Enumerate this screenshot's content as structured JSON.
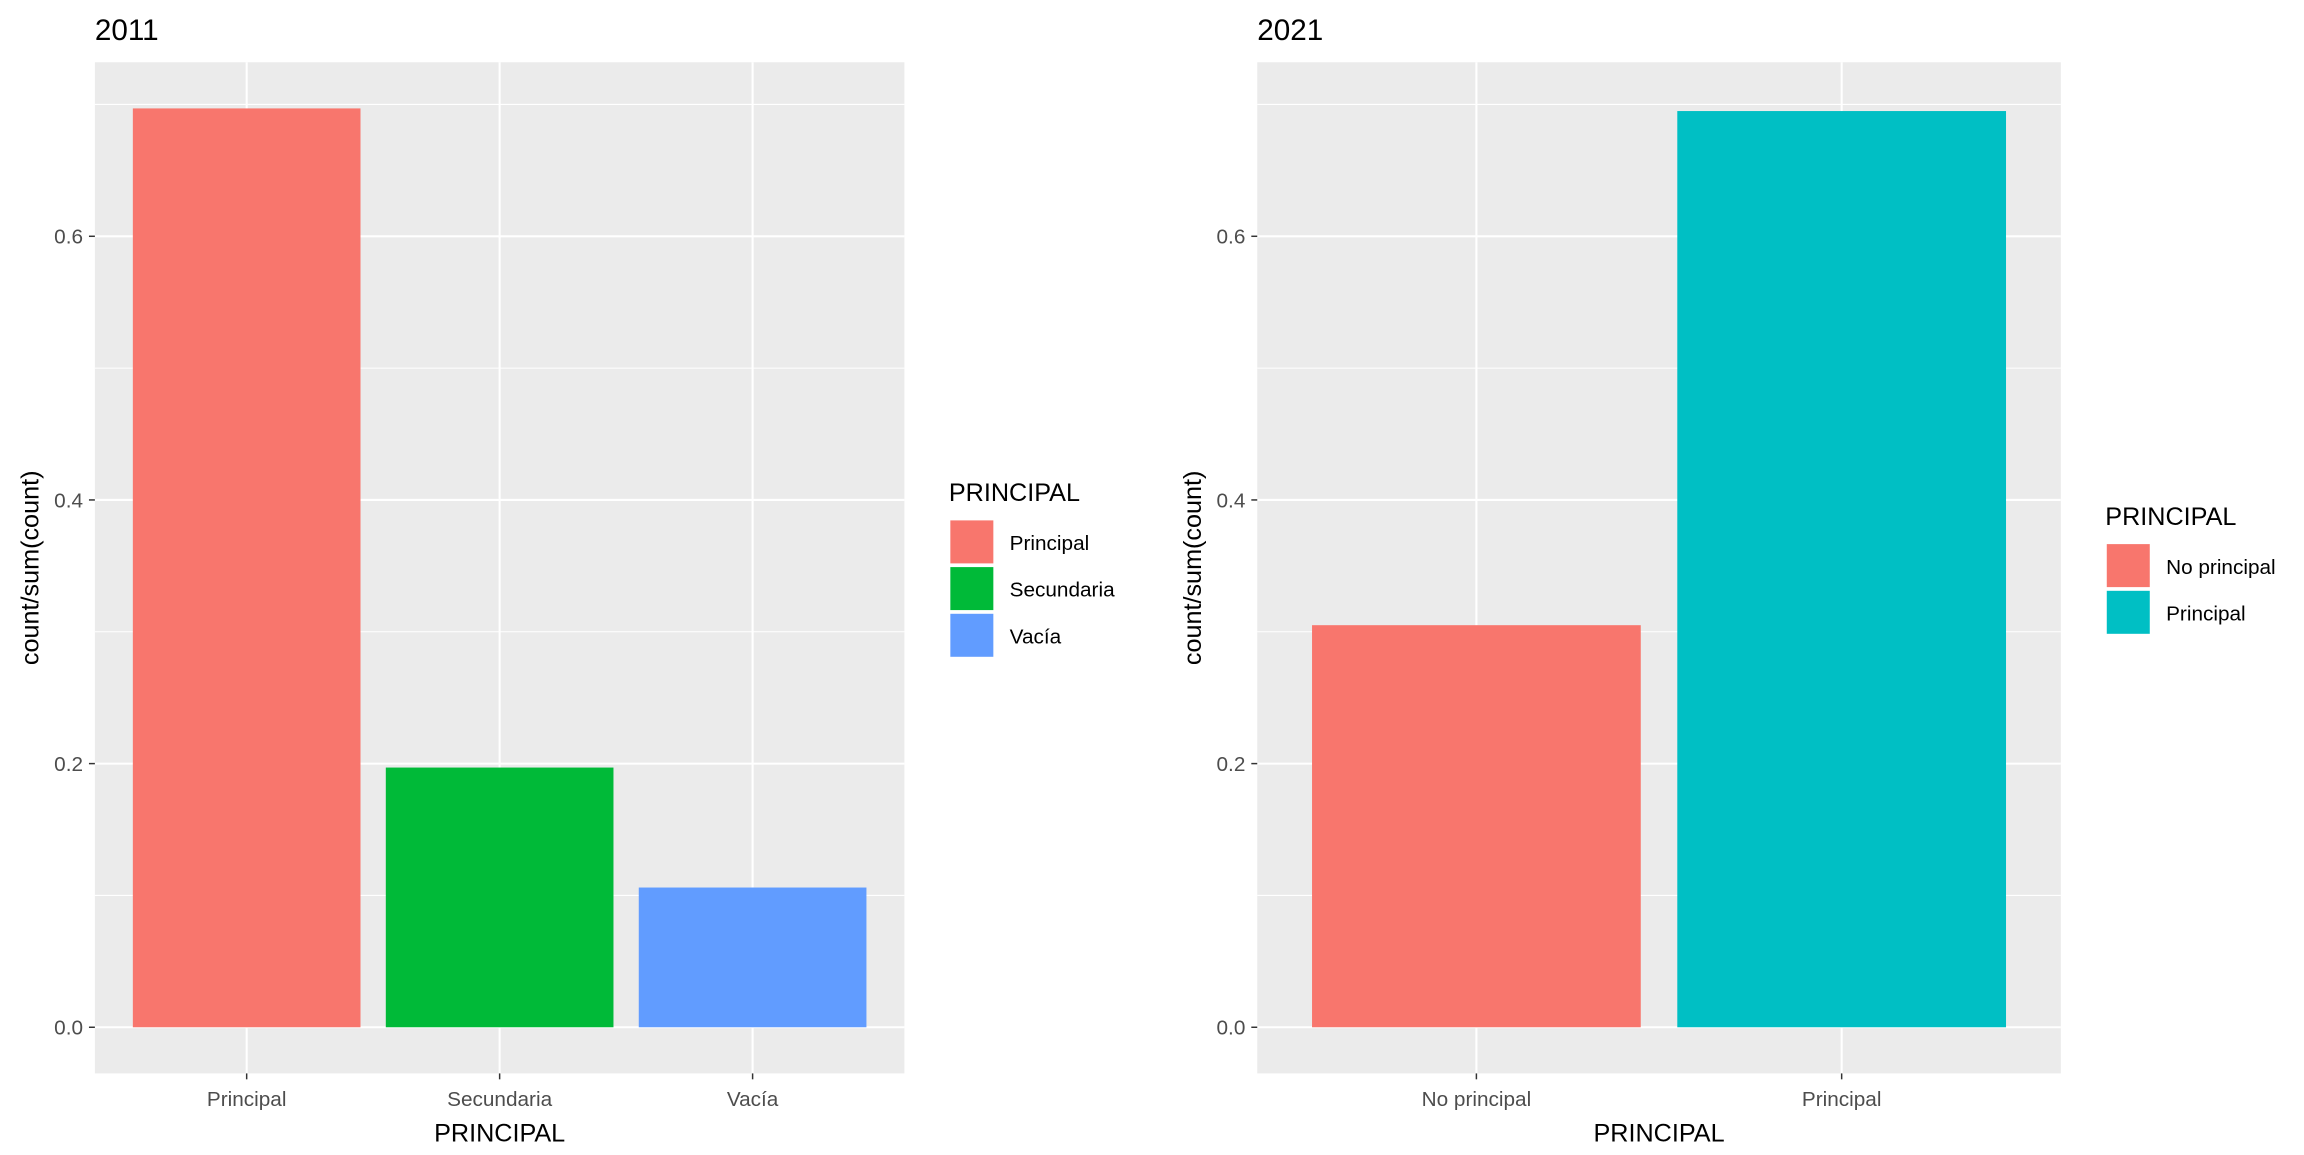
{
  "chart_data": [
    {
      "type": "bar",
      "title": "2011",
      "xlabel": "PRINCIPAL",
      "ylabel": "count/sum(count)",
      "categories": [
        "Principal",
        "Secundaria",
        "Vacía"
      ],
      "values": [
        0.697,
        0.197,
        0.106
      ],
      "colors": [
        "#F8766D",
        "#00BA38",
        "#619CFF"
      ],
      "ylim": [
        -0.035,
        0.732
      ],
      "yticks": [
        0.0,
        0.2,
        0.4,
        0.6
      ],
      "ytick_labels": [
        "0.0",
        "0.2",
        "0.4",
        "0.6"
      ],
      "grid": true,
      "panel_background": "#EBEBEB",
      "legend": {
        "title": "PRINCIPAL",
        "placement": "right",
        "entries": [
          "Principal",
          "Secundaria",
          "Vacía"
        ]
      }
    },
    {
      "type": "bar",
      "title": "2021",
      "xlabel": "PRINCIPAL",
      "ylabel": "count/sum(count)",
      "categories": [
        "No principal",
        "Principal"
      ],
      "values": [
        0.305,
        0.695
      ],
      "colors": [
        "#F8766D",
        "#00BFC4"
      ],
      "ylim": [
        -0.035,
        0.732
      ],
      "yticks": [
        0.0,
        0.2,
        0.4,
        0.6
      ],
      "ytick_labels": [
        "0.0",
        "0.2",
        "0.4",
        "0.6"
      ],
      "grid": true,
      "panel_background": "#EBEBEB",
      "legend": {
        "title": "PRINCIPAL",
        "placement": "right",
        "entries": [
          "No principal",
          "Principal"
        ]
      }
    }
  ]
}
